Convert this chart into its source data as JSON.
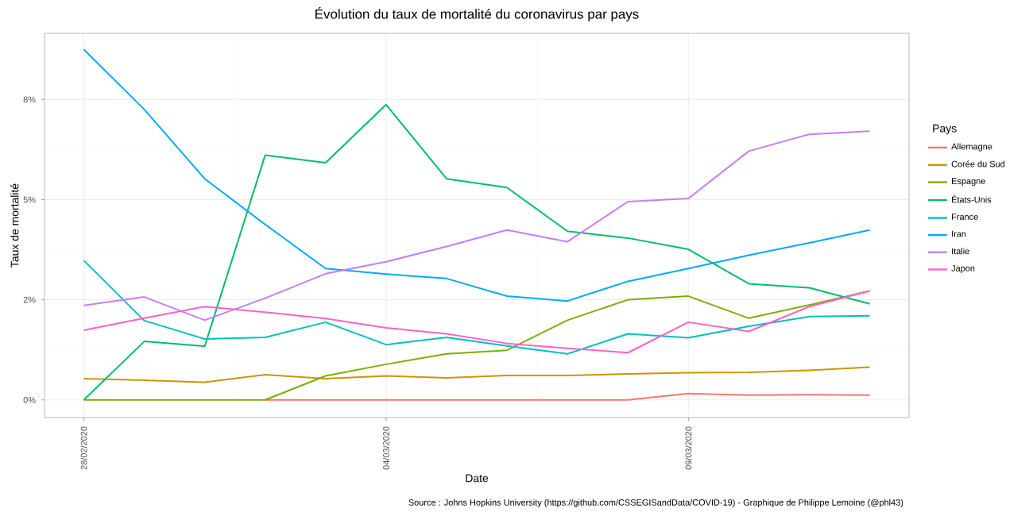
{
  "chart_data": {
    "type": "line",
    "title": "Évolution du taux de mortalité du coronavirus par pays",
    "xlabel": "Date",
    "ylabel": "Taux de mortalité",
    "legend_title": "Pays",
    "x": [
      "2020-02-28",
      "2020-02-29",
      "2020-03-01",
      "2020-03-02",
      "2020-03-03",
      "2020-03-04",
      "2020-03-05",
      "2020-03-06",
      "2020-03-07",
      "2020-03-08",
      "2020-03-09",
      "2020-03-10",
      "2020-03-11",
      "2020-03-12"
    ],
    "xlim": [
      "2020-02-27T08:24",
      "2020-03-12T15:36"
    ],
    "xticks": [
      {
        "value": "2020-02-28",
        "label": "28/02/2020"
      },
      {
        "value": "2020-03-04",
        "label": "04/03/2020"
      },
      {
        "value": "2020-03-09",
        "label": "09/03/2020"
      }
    ],
    "ylim": [
      -0.44,
      9.15
    ],
    "yticks": [
      {
        "value": 0,
        "label": "0%"
      },
      {
        "value": 2.5,
        "label": "2%"
      },
      {
        "value": 5,
        "label": "5%"
      },
      {
        "value": 7.5,
        "label": "8%"
      }
    ],
    "series": [
      {
        "name": "Allemagne",
        "color": "#f8766d",
        "values": [
          null,
          null,
          null,
          0,
          0,
          0,
          0,
          0,
          0,
          0,
          0.16,
          0.12,
          0.13,
          0.12
        ]
      },
      {
        "name": "Corée du Sud",
        "color": "#cd9600",
        "values": [
          0.53,
          0.49,
          0.44,
          0.63,
          0.53,
          0.6,
          0.55,
          0.61,
          0.61,
          0.65,
          0.68,
          0.69,
          0.74,
          0.82
        ]
      },
      {
        "name": "Espagne",
        "color": "#7cae00",
        "values": [
          0,
          0,
          0,
          0,
          0.6,
          0.89,
          1.15,
          1.24,
          1.99,
          2.5,
          2.59,
          2.04,
          2.37,
          2.72
        ]
      },
      {
        "name": "États-Unis",
        "color": "#00be67",
        "values": [
          0,
          1.46,
          1.34,
          6.11,
          5.92,
          7.37,
          5.52,
          5.3,
          4.21,
          4.04,
          3.76,
          2.9,
          2.8,
          2.4
        ]
      },
      {
        "name": "France",
        "color": "#00bfc4",
        "values": [
          3.48,
          1.98,
          1.52,
          1.56,
          1.94,
          1.38,
          1.56,
          1.35,
          1.15,
          1.65,
          1.55,
          1.84,
          2.08,
          2.1
        ]
      },
      {
        "name": "Iran",
        "color": "#00a9ff",
        "values": [
          8.75,
          7.25,
          5.52,
          4.38,
          3.28,
          3.14,
          3.03,
          2.59,
          2.47,
          2.96,
          3.28,
          3.61,
          3.92,
          4.24
        ]
      },
      {
        "name": "Italie",
        "color": "#c77cff",
        "values": [
          2.36,
          2.57,
          1.99,
          2.54,
          3.15,
          3.45,
          3.83,
          4.24,
          3.95,
          4.95,
          5.03,
          6.21,
          6.63,
          6.71
        ]
      },
      {
        "name": "Japon",
        "color": "#ff61cc",
        "values": [
          1.74,
          2.04,
          2.33,
          2.19,
          2.03,
          1.8,
          1.65,
          1.41,
          1.29,
          1.18,
          1.94,
          1.71,
          2.33,
          2.72
        ]
      }
    ],
    "grid": true,
    "legend": "right",
    "line_style": "solid",
    "annotations": [
      "Source : Johns Hopkins University (https://github.com/CSSEGISandData/COVID-19) - Graphique de Philippe Lemoine (@phl43)"
    ]
  }
}
